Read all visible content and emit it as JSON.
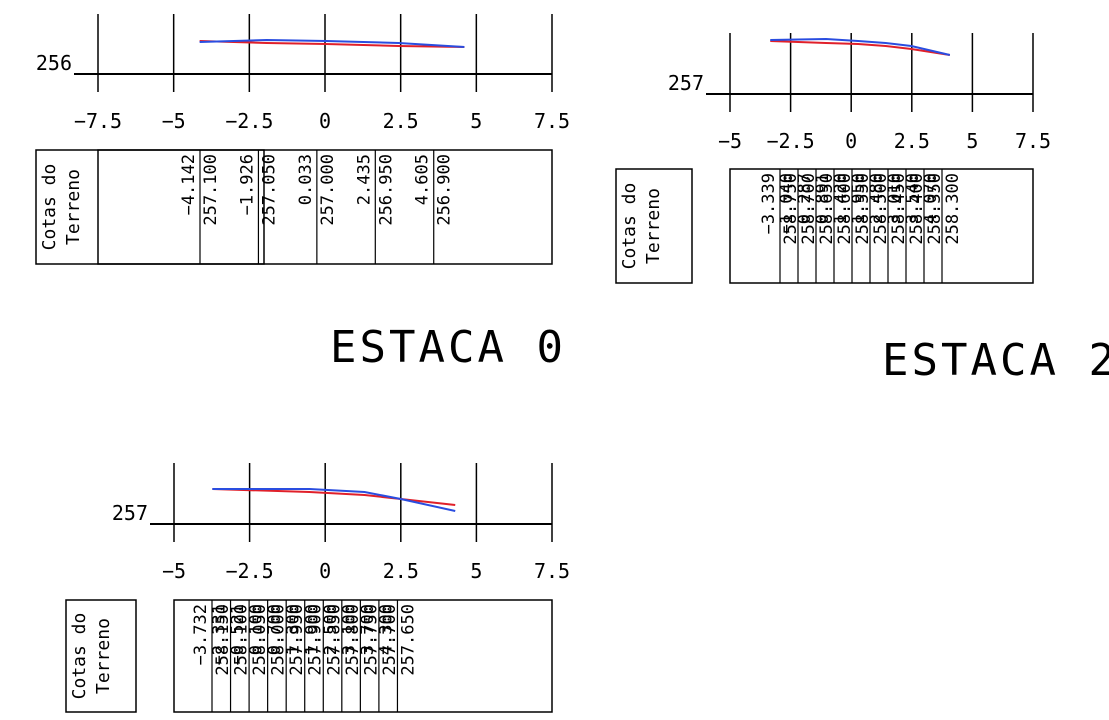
{
  "meta": {
    "box_title_line1": "Cotas do",
    "box_title_line2": "Terreno"
  },
  "colors": {
    "line": "#000000",
    "terrain_red": "#e0202a",
    "project_blue": "#2a4de0"
  },
  "profiles": [
    {
      "title": "ESTACA 0",
      "ref_elevation": "256",
      "x_ticks": [
        "−7.5",
        "−5",
        "−2.5",
        "0",
        "2.5",
        "5",
        "7.5"
      ],
      "cells": [
        {
          "offset": "−4.142",
          "elevation": "257.100"
        },
        {
          "offset": "−1.926",
          "elevation": "257.050"
        },
        {
          "offset": "0.033",
          "elevation": "257.000"
        },
        {
          "offset": "2.435",
          "elevation": "256.950"
        },
        {
          "offset": "4.605",
          "elevation": "256.900"
        }
      ]
    },
    {
      "title": "ESTACA 2",
      "ref_elevation": "257",
      "x_ticks": [
        "−5",
        "−2.5",
        "0",
        "2.5",
        "5",
        "7.5"
      ],
      "cells": [
        {
          "offset": "−3.339",
          "elevation": "258.750"
        },
        {
          "offset": "−1.040",
          "elevation": "258.700"
        },
        {
          "offset": "0.287",
          "elevation": "258.650"
        },
        {
          "offset": "0.891",
          "elevation": "258.600"
        },
        {
          "offset": "1.420",
          "elevation": "258.550"
        },
        {
          "offset": "1.950",
          "elevation": "258.500"
        },
        {
          "offset": "2.480",
          "elevation": "258.450"
        },
        {
          "offset": "3.010",
          "elevation": "258.400"
        },
        {
          "offset": "3.540",
          "elevation": "258.350"
        },
        {
          "offset": "4.070",
          "elevation": "258.300"
        }
      ]
    },
    {
      "title": "",
      "ref_elevation": "257",
      "x_ticks": [
        "−5",
        "−2.5",
        "0",
        "2.5",
        "5",
        "7.5"
      ],
      "cells": [
        {
          "offset": "−3.732",
          "elevation": "258.150"
        },
        {
          "offset": "−2.331",
          "elevation": "258.100"
        },
        {
          "offset": "−0.521",
          "elevation": "258.050"
        },
        {
          "offset": "0.100",
          "elevation": "258.000"
        },
        {
          "offset": "0.700",
          "elevation": "257.950"
        },
        {
          "offset": "1.300",
          "elevation": "257.900"
        },
        {
          "offset": "1.900",
          "elevation": "257.850"
        },
        {
          "offset": "2.500",
          "elevation": "257.800"
        },
        {
          "offset": "3.100",
          "elevation": "257.750"
        },
        {
          "offset": "3.700",
          "elevation": "257.700"
        },
        {
          "offset": "4.300",
          "elevation": "257.650"
        }
      ]
    }
  ]
}
